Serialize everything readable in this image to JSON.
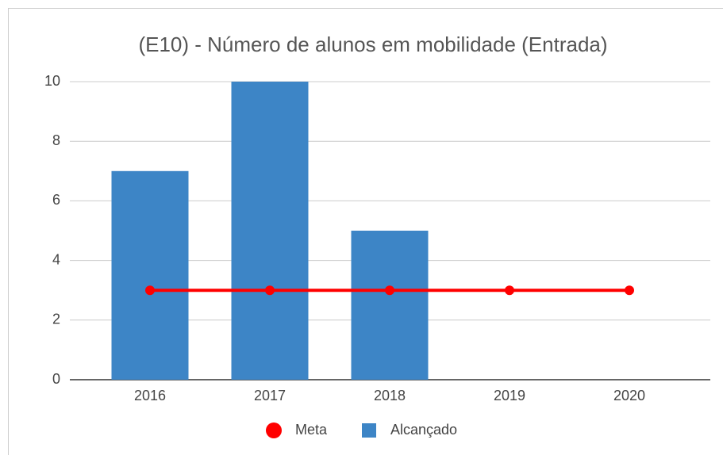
{
  "chart_data": {
    "type": "combo",
    "title": "(E10) - Número de alunos em mobilidade (Entrada)",
    "categories": [
      "2016",
      "2017",
      "2018",
      "2019",
      "2020"
    ],
    "series": [
      {
        "name": "Meta",
        "type": "line",
        "color": "#ff0000",
        "values": [
          3,
          3,
          3,
          3,
          3
        ]
      },
      {
        "name": "Alcançado",
        "type": "bar",
        "color": "#3d85c6",
        "values": [
          7,
          10,
          5,
          null,
          null
        ]
      }
    ],
    "ylim": [
      0,
      10
    ],
    "yticks": [
      0,
      2,
      4,
      6,
      8,
      10
    ],
    "grid": true,
    "legend": "bottom"
  }
}
